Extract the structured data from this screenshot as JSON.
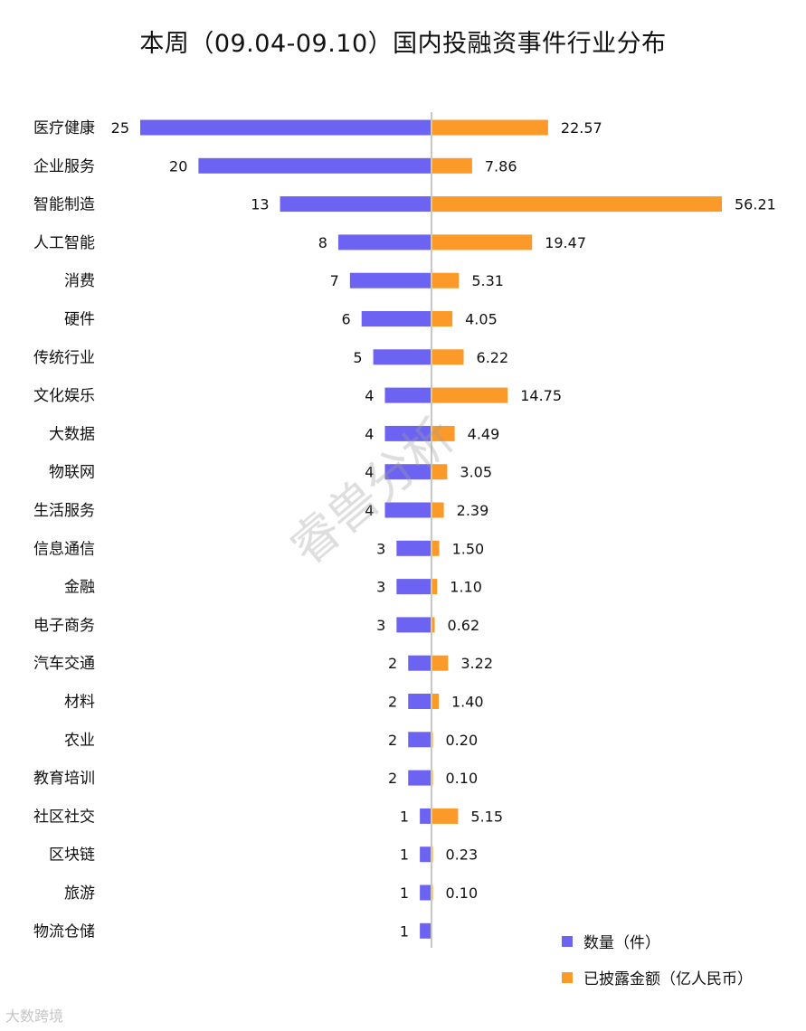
{
  "chart_data": {
    "type": "bar",
    "title": "本周（09.04-09.10）国内投融资事件行业分布",
    "categories": [
      "医疗健康",
      "企业服务",
      "智能制造",
      "人工智能",
      "消费",
      "硬件",
      "传统行业",
      "文化娱乐",
      "大数据",
      "物联网",
      "生活服务",
      "信息通信",
      "金融",
      "电子商务",
      "汽车交通",
      "材料",
      "农业",
      "教育培训",
      "社区社交",
      "区块链",
      "旅游",
      "物流仓储"
    ],
    "series": [
      {
        "name": "数量（件）",
        "color": "#6c63f2",
        "values": [
          25,
          20,
          13,
          8,
          7,
          6,
          5,
          4,
          4,
          4,
          4,
          3,
          3,
          3,
          2,
          2,
          2,
          2,
          1,
          1,
          1,
          1
        ]
      },
      {
        "name": "已披露金额（亿人民币）",
        "color": "#fb9a28",
        "values": [
          "22.57",
          "7.86",
          "56.21",
          "19.47",
          "5.31",
          "4.05",
          "6.22",
          "14.75",
          "4.49",
          "3.05",
          "2.39",
          "1.50",
          "1.10",
          "0.62",
          "3.22",
          "1.40",
          "0.20",
          "0.10",
          "5.15",
          "0.23",
          "0.10",
          null
        ]
      }
    ],
    "legend_position": "bottom-right"
  },
  "watermark": "睿兽分析",
  "logo_text": "大数跨境"
}
